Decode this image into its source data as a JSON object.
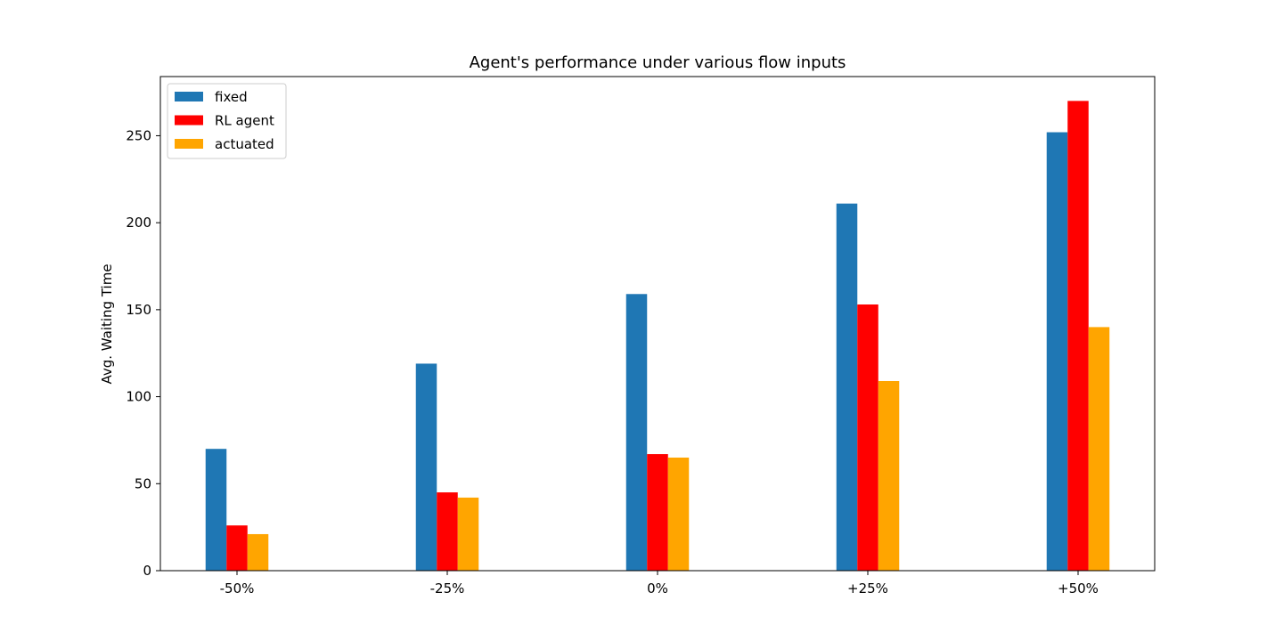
{
  "chart_data": {
    "type": "bar",
    "title": "Agent's performance under various flow inputs",
    "xlabel": "",
    "ylabel": "Avg. Waiting Time",
    "categories": [
      "-50%",
      "-25%",
      "0%",
      "+25%",
      "+50%"
    ],
    "series": [
      {
        "name": "fixed",
        "color": "#1f77b4",
        "values": [
          70,
          119,
          159,
          211,
          252
        ]
      },
      {
        "name": "RL agent",
        "color": "#ff0000",
        "values": [
          26,
          45,
          67,
          153,
          270
        ]
      },
      {
        "name": "actuated",
        "color": "#ffa500",
        "values": [
          21,
          42,
          65,
          109,
          140
        ]
      }
    ],
    "ylim": [
      0,
      284
    ],
    "yticks": [
      0,
      50,
      100,
      150,
      200,
      250
    ],
    "legend_position": "top-left",
    "grid": false
  }
}
